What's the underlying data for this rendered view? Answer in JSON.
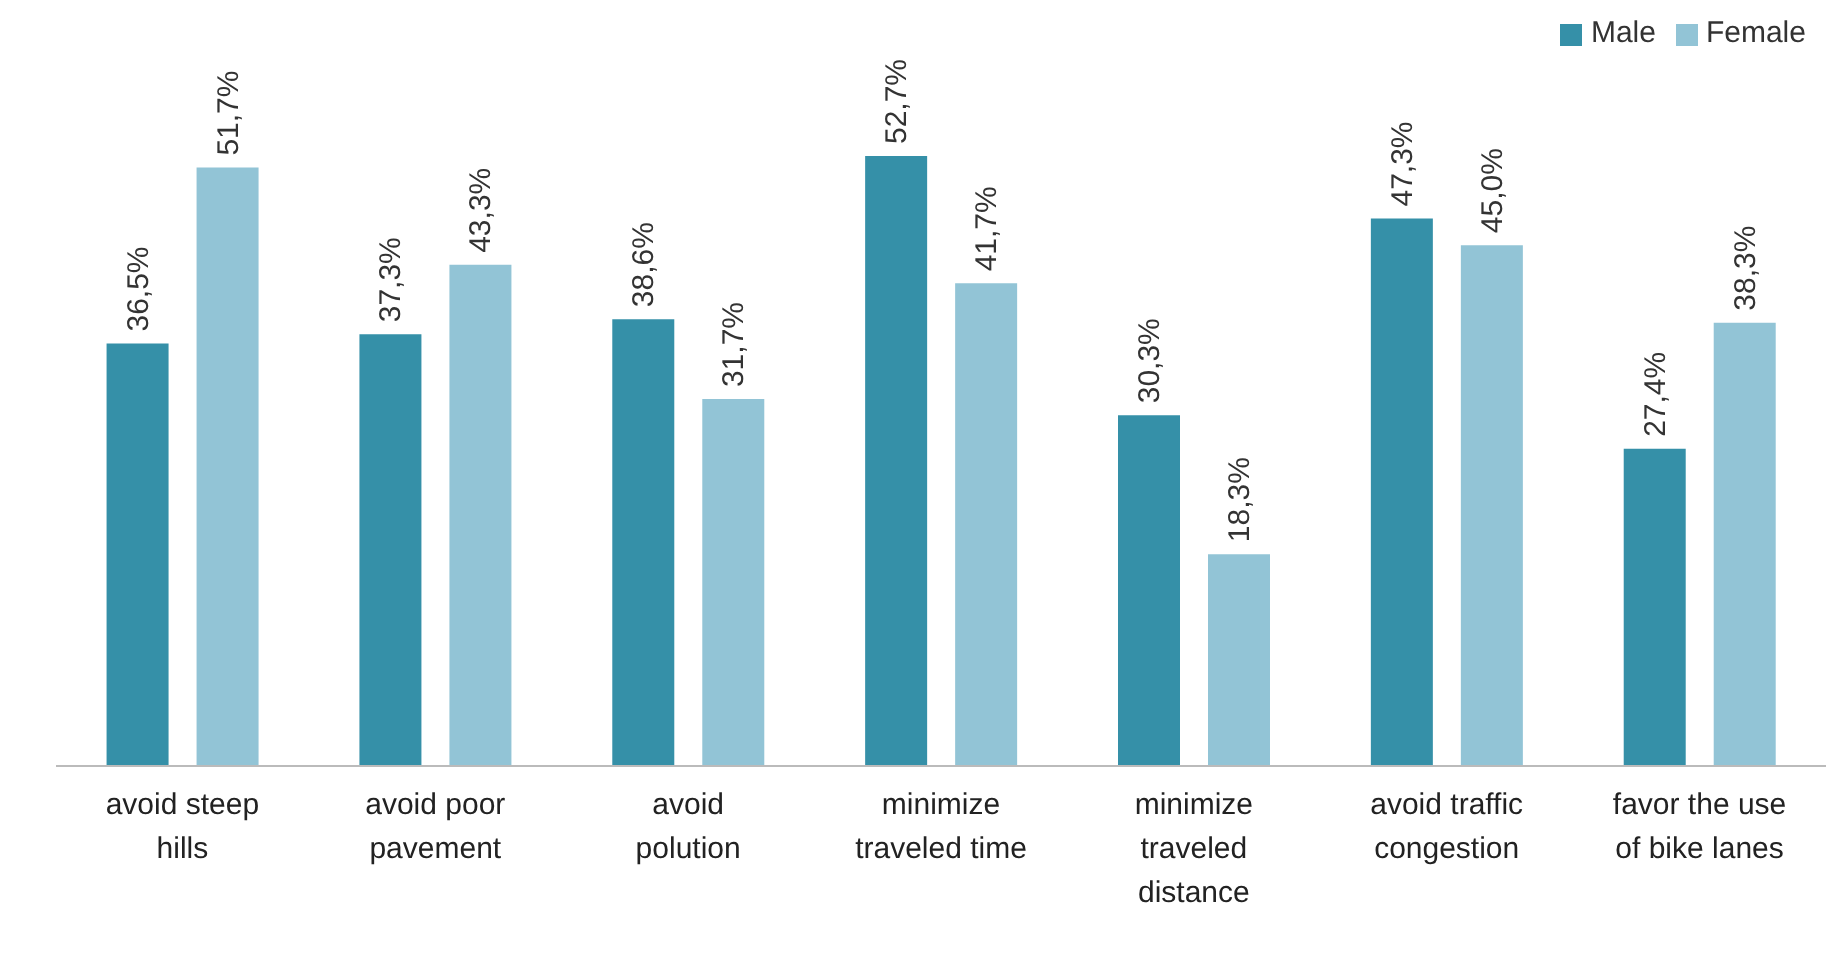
{
  "chart_data": {
    "type": "bar",
    "categories": [
      "avoid steep hills",
      "avoid poor pavement",
      "avoid polution",
      "minimize traveled time",
      "minimize traveled distance",
      "avoid traffic congestion",
      "favor the use of bike lanes"
    ],
    "series": [
      {
        "name": "Male",
        "color": "#3590a8",
        "values": [
          36.5,
          37.3,
          38.6,
          52.7,
          30.3,
          47.3,
          27.4
        ],
        "value_labels": [
          "36,5%",
          "37,3%",
          "38,6%",
          "52,7%",
          "30,3%",
          "47,3%",
          "27,4%"
        ]
      },
      {
        "name": "Female",
        "color": "#92c4d6",
        "values": [
          51.7,
          43.3,
          31.7,
          41.7,
          18.3,
          45.0,
          38.3
        ],
        "value_labels": [
          "51,7%",
          "43,3%",
          "31,7%",
          "41,7%",
          "18,3%",
          "45,0%",
          "38,3%"
        ]
      }
    ],
    "legend": "top right",
    "grid": false
  }
}
